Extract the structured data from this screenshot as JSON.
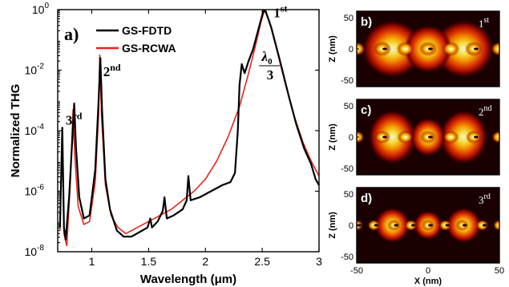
{
  "chart_data": [
    {
      "type": "line",
      "panel_label": "a)",
      "xlabel": "Wavelength (μm)",
      "ylabel": "Normalized THG",
      "xlim": [
        0.7,
        3
      ],
      "ylim_exponent": [
        -8,
        0
      ],
      "yscale": "log",
      "x_ticks": [
        "1",
        "1.5",
        "2",
        "2.5",
        "3"
      ],
      "y_ticks": [
        "10-8",
        "10-6",
        "10-4",
        "10-2",
        "100"
      ],
      "legend_position": "top-left",
      "series": [
        {
          "name": "GS-FDTD",
          "color": "#000000",
          "points_log10": [
            [
              0.72,
              -7.2
            ],
            [
              0.74,
              -3.9
            ],
            [
              0.755,
              -7.2
            ],
            [
              0.77,
              -7.6
            ],
            [
              0.8,
              -6.2
            ],
            [
              0.83,
              -4.2
            ],
            [
              0.845,
              -3.1
            ],
            [
              0.86,
              -4.5
            ],
            [
              0.89,
              -6.2
            ],
            [
              0.93,
              -6.9
            ],
            [
              0.98,
              -6.8
            ],
            [
              1.03,
              -5.3
            ],
            [
              1.06,
              -3.0
            ],
            [
              1.075,
              -1.6
            ],
            [
              1.09,
              -3.3
            ],
            [
              1.12,
              -5.6
            ],
            [
              1.16,
              -6.6
            ],
            [
              1.22,
              -7.3
            ],
            [
              1.28,
              -7.5
            ],
            [
              1.35,
              -7.5
            ],
            [
              1.42,
              -7.35
            ],
            [
              1.49,
              -7.2
            ],
            [
              1.515,
              -6.9
            ],
            [
              1.53,
              -7.2
            ],
            [
              1.58,
              -7.0
            ],
            [
              1.625,
              -6.65
            ],
            [
              1.64,
              -6.2
            ],
            [
              1.66,
              -6.9
            ],
            [
              1.72,
              -6.8
            ],
            [
              1.8,
              -6.6
            ],
            [
              1.835,
              -6.3
            ],
            [
              1.85,
              -5.5
            ],
            [
              1.87,
              -6.3
            ],
            [
              1.95,
              -6.2
            ],
            [
              2.05,
              -6.0
            ],
            [
              2.15,
              -5.8
            ],
            [
              2.22,
              -5.7
            ],
            [
              2.26,
              -5.4
            ],
            [
              2.285,
              -4.0
            ],
            [
              2.3,
              -2.5
            ],
            [
              2.32,
              -1.8
            ],
            [
              2.345,
              -2.1
            ],
            [
              2.38,
              -1.7
            ],
            [
              2.42,
              -1.3
            ],
            [
              2.47,
              -0.6
            ],
            [
              2.51,
              -0.05
            ],
            [
              2.53,
              -0.05
            ],
            [
              2.58,
              -0.6
            ],
            [
              2.65,
              -1.6
            ],
            [
              2.73,
              -2.8
            ],
            [
              2.8,
              -3.8
            ],
            [
              2.87,
              -4.6
            ],
            [
              2.93,
              -5.1
            ],
            [
              2.97,
              -5.6
            ],
            [
              3.0,
              -5.8
            ]
          ]
        },
        {
          "name": "GS-RCWA",
          "color": "#e8241a",
          "points_log10": [
            [
              0.72,
              -7.3
            ],
            [
              0.74,
              -4.0
            ],
            [
              0.755,
              -7.4
            ],
            [
              0.78,
              -7.8
            ],
            [
              0.81,
              -5.8
            ],
            [
              0.835,
              -3.3
            ],
            [
              0.85,
              -4.8
            ],
            [
              0.88,
              -6.5
            ],
            [
              0.93,
              -7.1
            ],
            [
              0.98,
              -7.0
            ],
            [
              1.03,
              -5.7
            ],
            [
              1.06,
              -3.5
            ],
            [
              1.07,
              -1.5
            ],
            [
              1.085,
              -3.5
            ],
            [
              1.12,
              -5.8
            ],
            [
              1.17,
              -6.8
            ],
            [
              1.23,
              -7.2
            ],
            [
              1.3,
              -7.4
            ],
            [
              1.4,
              -7.2
            ],
            [
              1.5,
              -7.0
            ],
            [
              1.6,
              -6.8
            ],
            [
              1.7,
              -6.6
            ],
            [
              1.8,
              -6.3
            ],
            [
              1.9,
              -6.0
            ],
            [
              2.0,
              -5.6
            ],
            [
              2.1,
              -5.0
            ],
            [
              2.2,
              -4.2
            ],
            [
              2.3,
              -3.2
            ],
            [
              2.38,
              -2.1
            ],
            [
              2.44,
              -1.2
            ],
            [
              2.49,
              -0.4
            ],
            [
              2.52,
              -0.02
            ],
            [
              2.56,
              -0.35
            ],
            [
              2.62,
              -1.2
            ],
            [
              2.7,
              -2.4
            ],
            [
              2.78,
              -3.5
            ],
            [
              2.86,
              -4.4
            ],
            [
              2.93,
              -5.0
            ],
            [
              3.0,
              -5.5
            ]
          ]
        }
      ],
      "annotations": [
        {
          "text": "1st",
          "x": 2.6,
          "y_log10": -0.25
        },
        {
          "text": "2nd",
          "x": 1.1,
          "y_log10": -2.2
        },
        {
          "text": "3rd",
          "x": 0.77,
          "y_log10": -3.8
        },
        {
          "text": "λ0 / 3",
          "x": 2.57,
          "y_log10": -1.8
        }
      ]
    },
    {
      "type": "heatmap",
      "panels": [
        {
          "label": "b)",
          "order": "1st"
        },
        {
          "label": "c)",
          "order": "2nd"
        },
        {
          "label": "d)",
          "order": "3rd"
        }
      ],
      "xlabel": "X (nm)",
      "ylabel": "Z (nm)",
      "xlim": [
        -50,
        50
      ],
      "x_ticks": [
        "-50",
        "0",
        "50"
      ],
      "y_ticks": [
        "50",
        "0",
        "-50"
      ],
      "colormap": "black-red-yellow-white"
    }
  ]
}
